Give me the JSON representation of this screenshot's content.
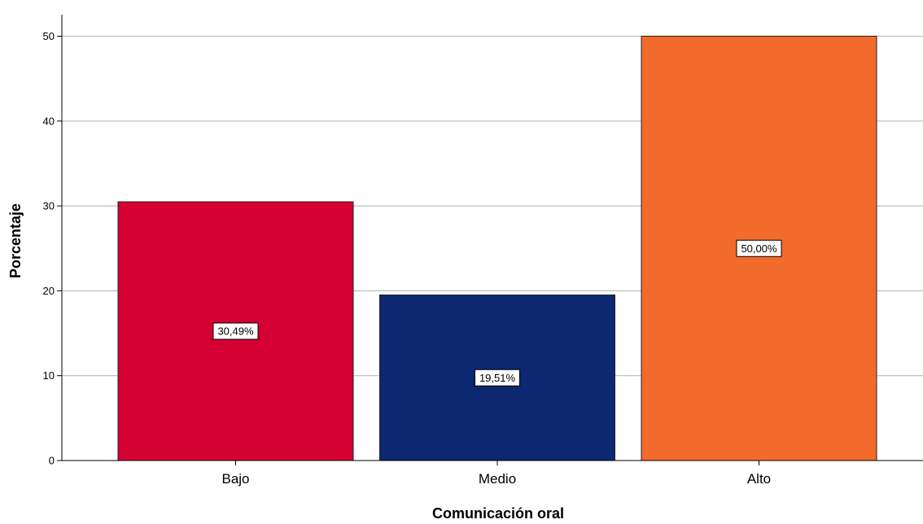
{
  "chart_data": {
    "type": "bar",
    "categories": [
      "Bajo",
      "Medio",
      "Alto"
    ],
    "values": [
      30.49,
      19.51,
      50.0
    ],
    "data_labels": [
      "30,49%",
      "19,51%",
      "50,00%"
    ],
    "colors": [
      "#d50032",
      "#0b2870",
      "#f26a2c"
    ],
    "title": "",
    "xlabel": "Comunicación oral",
    "ylabel": "Porcentaje",
    "ylim": [
      0,
      52.8
    ],
    "yticks": [
      0,
      10,
      20,
      30,
      40,
      50
    ],
    "grid": true,
    "legend": "none"
  }
}
